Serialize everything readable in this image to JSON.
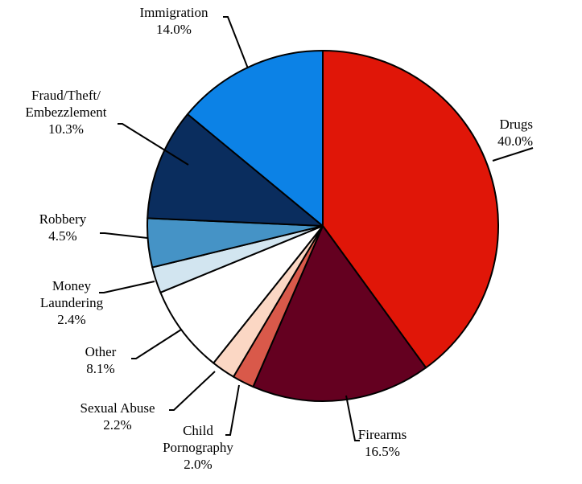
{
  "chart_data": {
    "type": "pie",
    "title": "",
    "start_angle_deg": 0,
    "direction": "clockwise",
    "slice_stroke": "#000000",
    "slices": [
      {
        "label_lines": [
          "Drugs"
        ],
        "pct_text": "40.0%",
        "value": 40.0,
        "color": "#e01608"
      },
      {
        "label_lines": [
          "Firearms"
        ],
        "pct_text": "16.5%",
        "value": 16.5,
        "color": "#640020"
      },
      {
        "label_lines": [
          "Child",
          "Pornography"
        ],
        "pct_text": "2.0%",
        "value": 2.0,
        "color": "#d9594a"
      },
      {
        "label_lines": [
          "Sexual Abuse"
        ],
        "pct_text": "2.2%",
        "value": 2.2,
        "color": "#fbd7c4"
      },
      {
        "label_lines": [
          "Other"
        ],
        "pct_text": "8.1%",
        "value": 8.1,
        "color": "#ffffff"
      },
      {
        "label_lines": [
          "Money",
          "Laundering"
        ],
        "pct_text": "2.4%",
        "value": 2.4,
        "color": "#d2e5f0"
      },
      {
        "label_lines": [
          "Robbery"
        ],
        "pct_text": "4.5%",
        "value": 4.5,
        "color": "#4593c6"
      },
      {
        "label_lines": [
          "Fraud/Theft/",
          "Embezzlement"
        ],
        "pct_text": "10.3%",
        "value": 10.3,
        "color": "#0a2d5e"
      },
      {
        "label_lines": [
          "Immigration"
        ],
        "pct_text": "14.0%",
        "value": 14.0,
        "color": "#0c82e6"
      }
    ]
  }
}
